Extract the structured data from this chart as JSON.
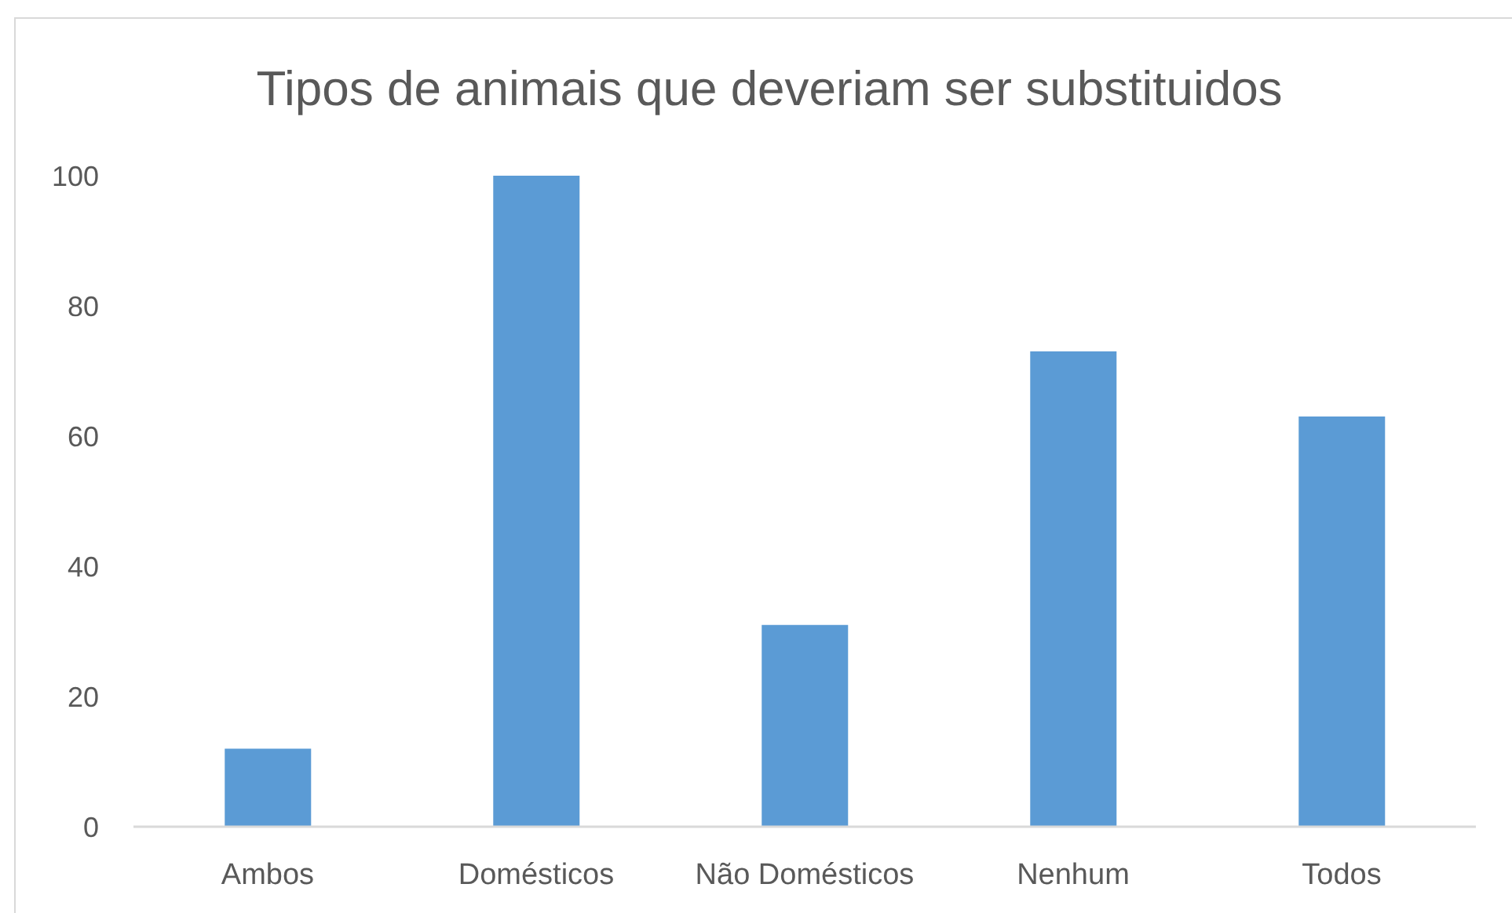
{
  "chart_data": {
    "type": "bar",
    "title": "Tipos de animais que deveriam ser substituidos",
    "categories": [
      "Ambos",
      "Domésticos",
      "Não Domésticos",
      "Nenhum",
      "Todos"
    ],
    "values": [
      12,
      100,
      31,
      73,
      63
    ],
    "color": "#5b9bd5",
    "ylim": [
      0,
      100
    ],
    "yticks": [
      0,
      20,
      40,
      60,
      80,
      100
    ]
  }
}
